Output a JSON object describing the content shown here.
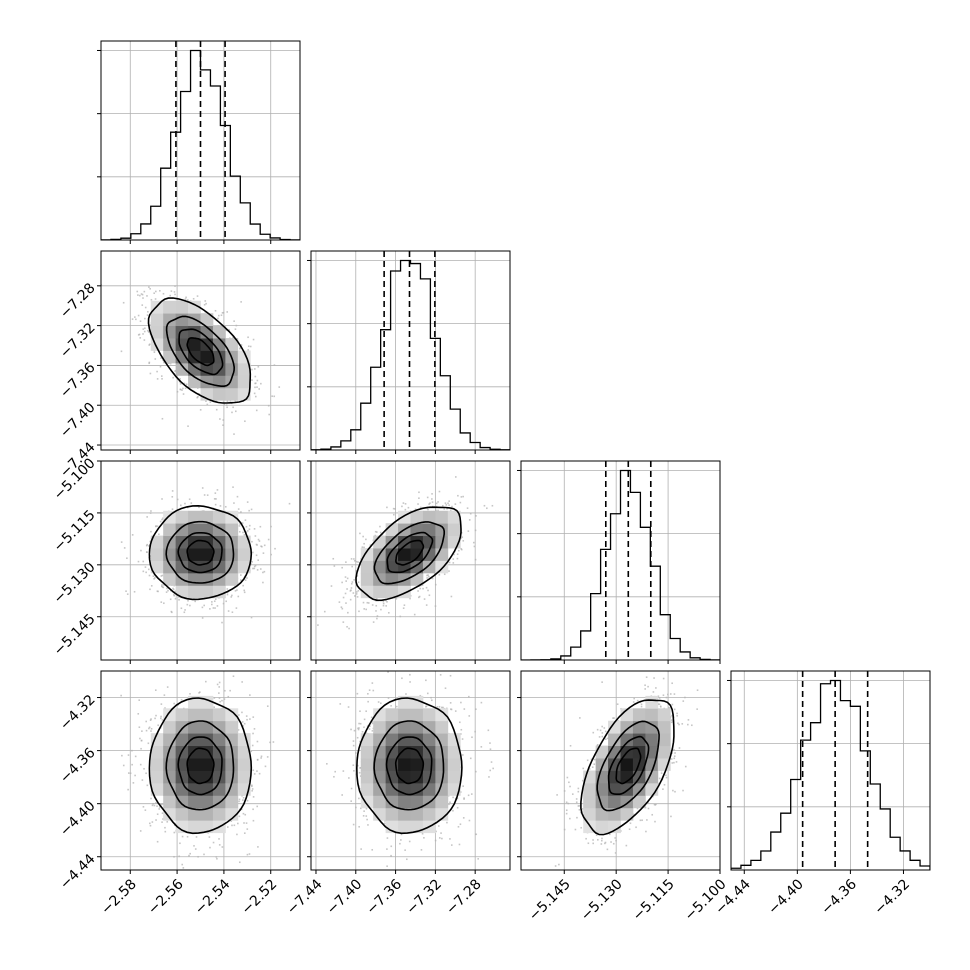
{
  "chart_data": {
    "type": "corner",
    "parameters": [
      {
        "name": "",
        "ticks": [
          -2.58,
          -2.56,
          -2.54,
          -2.52
        ],
        "tick_labels": [
          "−2.58",
          "−2.56",
          "−2.54",
          "−2.52"
        ],
        "range": [
          -2.5925,
          -2.5075
        ],
        "quantiles": [
          -2.5605,
          -2.55,
          -2.5395
        ],
        "median": -2.55,
        "sigma": 0.0105
      },
      {
        "name": "",
        "ticks": [
          -7.44,
          -7.4,
          -7.36,
          -7.32,
          -7.28
        ],
        "tick_labels": [
          "−7.44",
          "−7.40",
          "−7.36",
          "−7.32",
          "−7.28"
        ],
        "range": [
          -7.445,
          -7.245
        ],
        "quantiles": [
          -7.3715,
          -7.346,
          -7.3205
        ],
        "median": -7.346,
        "sigma": 0.0255
      },
      {
        "name": "",
        "ticks": [
          -5.145,
          -5.13,
          -5.115,
          -5.1
        ],
        "tick_labels": [
          "−5.145",
          "−5.130",
          "−5.115",
          "−5.100"
        ],
        "range": [
          -5.1575,
          -5.1
        ],
        "quantiles": [
          -5.133,
          -5.1265,
          -5.12
        ],
        "median": -5.1265,
        "sigma": 0.0065
      },
      {
        "name": "",
        "ticks": [
          -4.44,
          -4.4,
          -4.36,
          -4.32
        ],
        "tick_labels": [
          "−4.44",
          "−4.40",
          "−4.36",
          "−4.32"
        ],
        "range": [
          -4.45,
          -4.3
        ],
        "quantiles": [
          -4.396,
          -4.3715,
          -4.347
        ],
        "median": -4.3715,
        "sigma": 0.0245
      }
    ],
    "correlations": [
      [
        1.0,
        -0.55,
        0.0,
        0.0
      ],
      [
        -0.55,
        1.0,
        0.55,
        0.0
      ],
      [
        0.0,
        0.55,
        1.0,
        0.55
      ],
      [
        0.0,
        0.0,
        0.55,
        1.0
      ]
    ],
    "histogram_bins": 20,
    "quantile_levels": [
      0.16,
      0.5,
      0.84
    ],
    "contour_levels_sigma": [
      0.5,
      1.0,
      1.5,
      2.0
    ],
    "grid": true,
    "colors": {
      "line": "#000000",
      "scatter": "#b3b3b3",
      "grid": "#b0b0b0"
    }
  }
}
